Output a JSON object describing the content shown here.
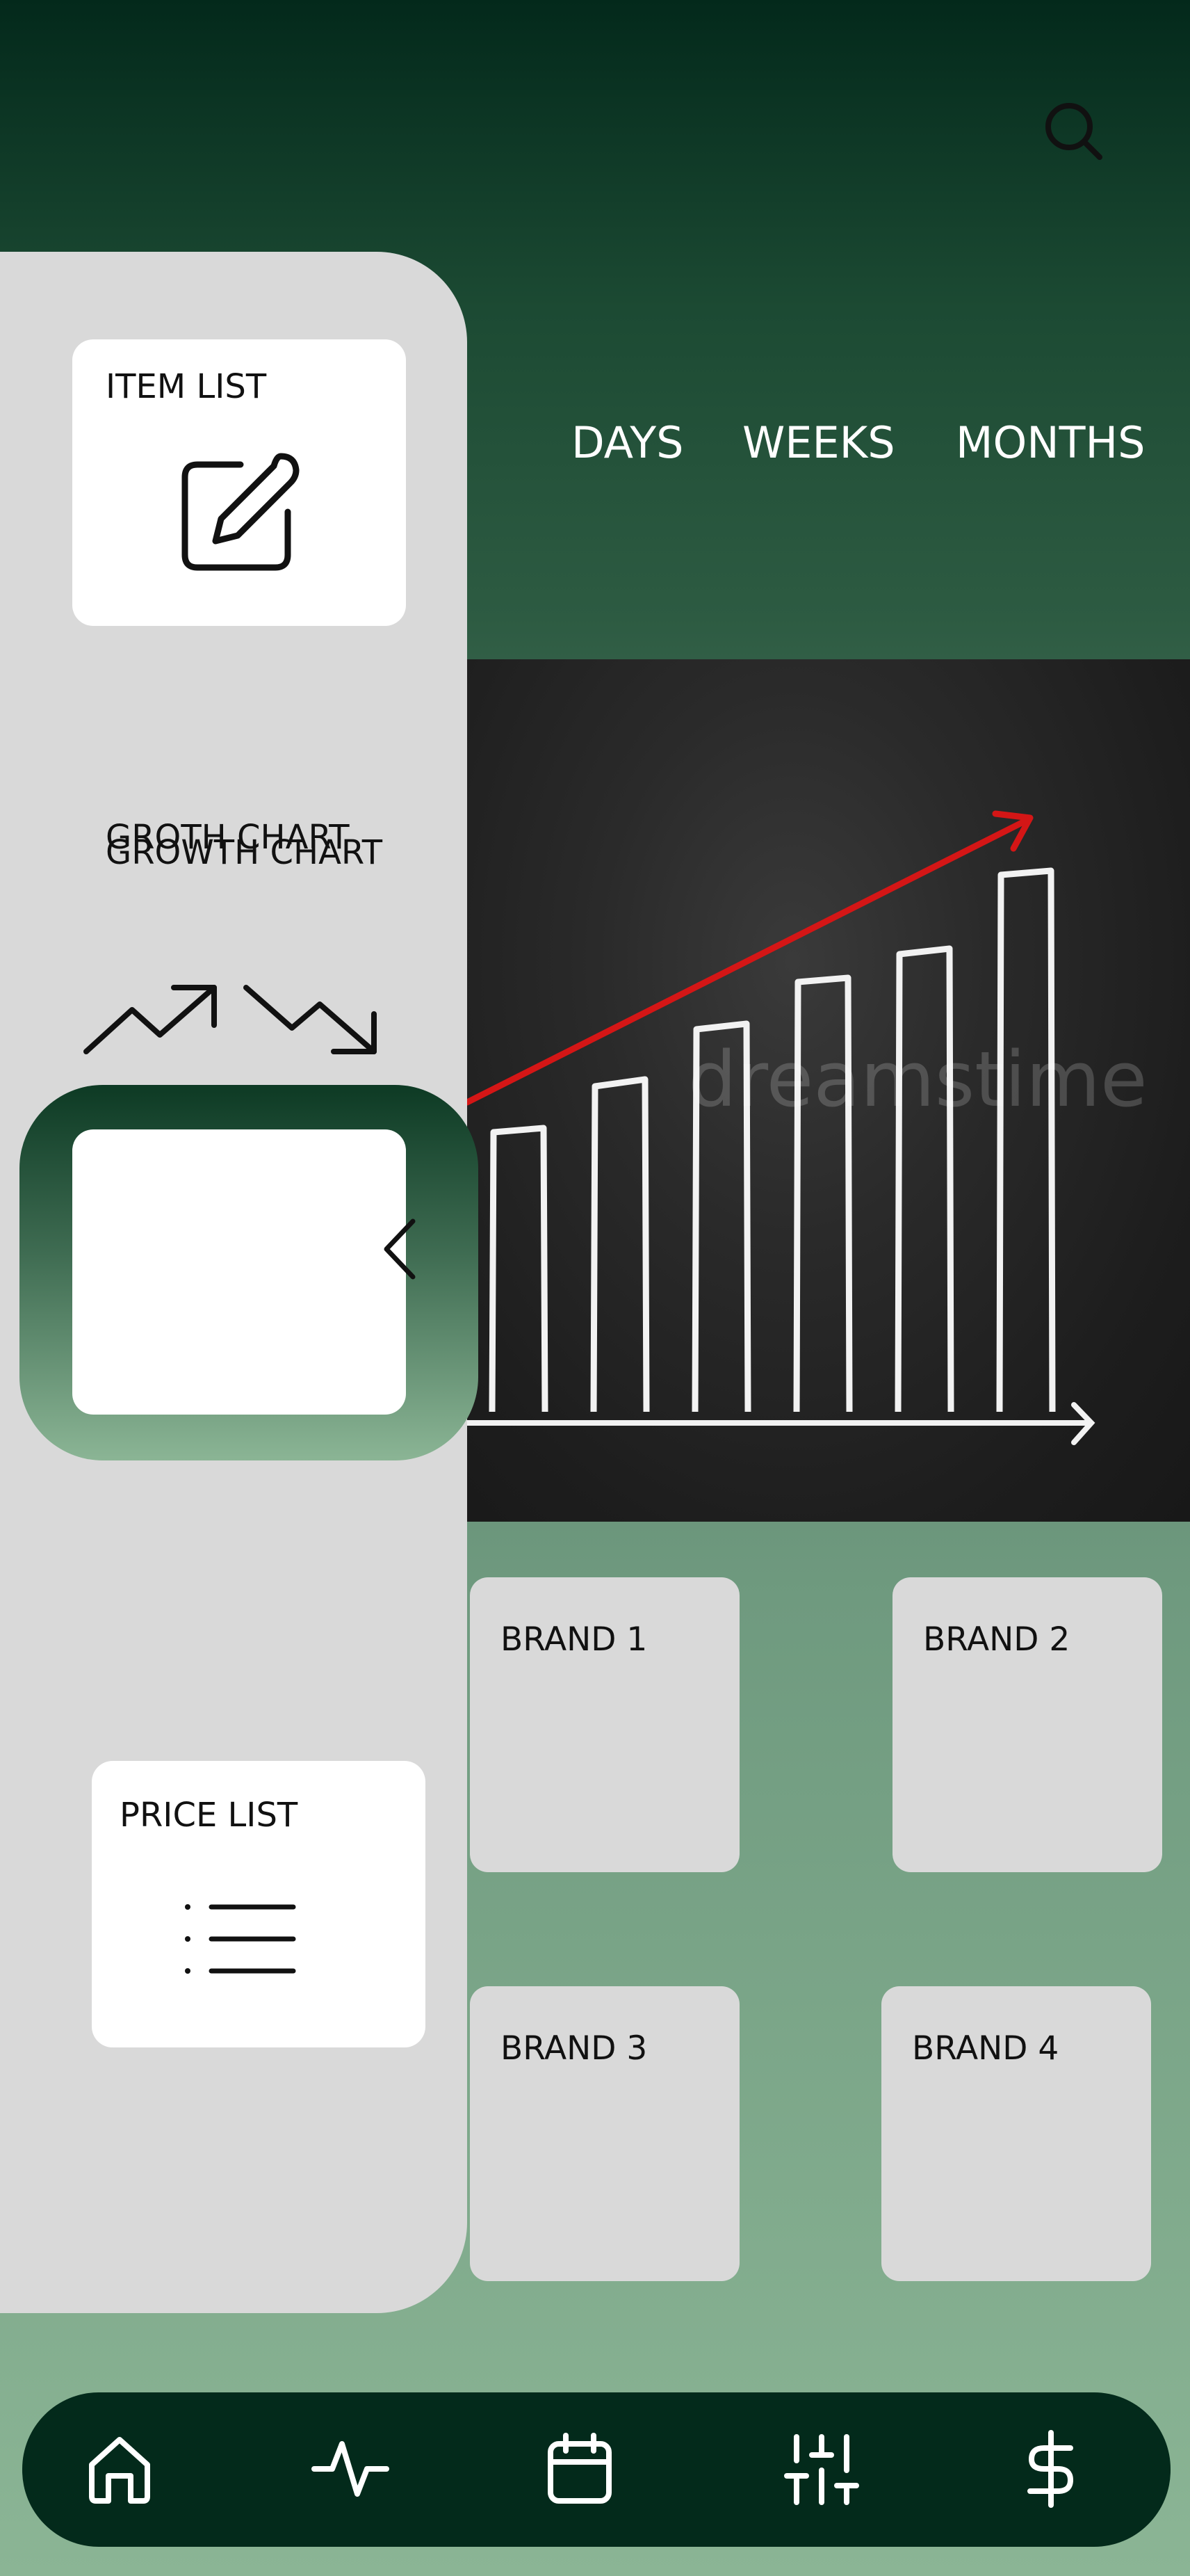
{
  "period_tabs": [
    "DAYS",
    "WEEKS",
    "MONTHS"
  ],
  "chart_image": {
    "watermark_text": "dreamstime"
  },
  "brands": [
    "BRAND 1",
    "BRAND 2",
    "BRAND 3",
    "BRAND 4"
  ],
  "drawer": {
    "item_list_title": "ITEM LIST",
    "growth_title_a": "GROTH CHART",
    "growth_title_b": "GROWTH CHART",
    "price_list_title": "PRICE LIST"
  },
  "icons": {
    "search": "search-icon",
    "item_list": "edit-icon",
    "trend_up": "trending-up-icon",
    "trend_down": "trending-down-icon",
    "collapse": "chevron-left-icon",
    "price_list": "list-icon",
    "nav": [
      "home-icon",
      "activity-icon",
      "calendar-icon",
      "sliders-icon",
      "dollar-icon"
    ]
  },
  "colors": {
    "header_dark": "#03291b",
    "nav_bg": "#032a1b",
    "drawer_bg": "#d9d9d9",
    "card_bg": "#ffffff",
    "arrow_red": "#d41616"
  }
}
